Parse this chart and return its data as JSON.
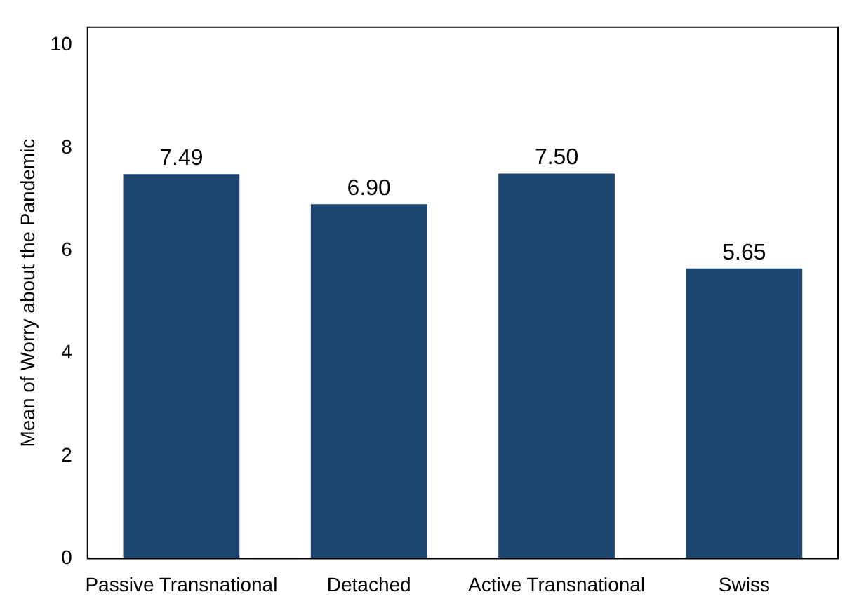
{
  "chart_data": {
    "type": "bar",
    "ylabel": "Mean of Worry about the Pandemic",
    "categories": [
      "Passive Transnational",
      "Detached",
      "Active Transnational",
      "Swiss"
    ],
    "values": [
      7.49,
      6.9,
      7.5,
      5.65
    ],
    "color": "#1c4670",
    "value_labels": [
      "7.49",
      "6.90",
      "7.50",
      "5.65"
    ],
    "ylim": [
      0,
      10.35
    ],
    "yticks": [
      0,
      2,
      4,
      6,
      8,
      10
    ],
    "grid": false,
    "legend": false
  }
}
